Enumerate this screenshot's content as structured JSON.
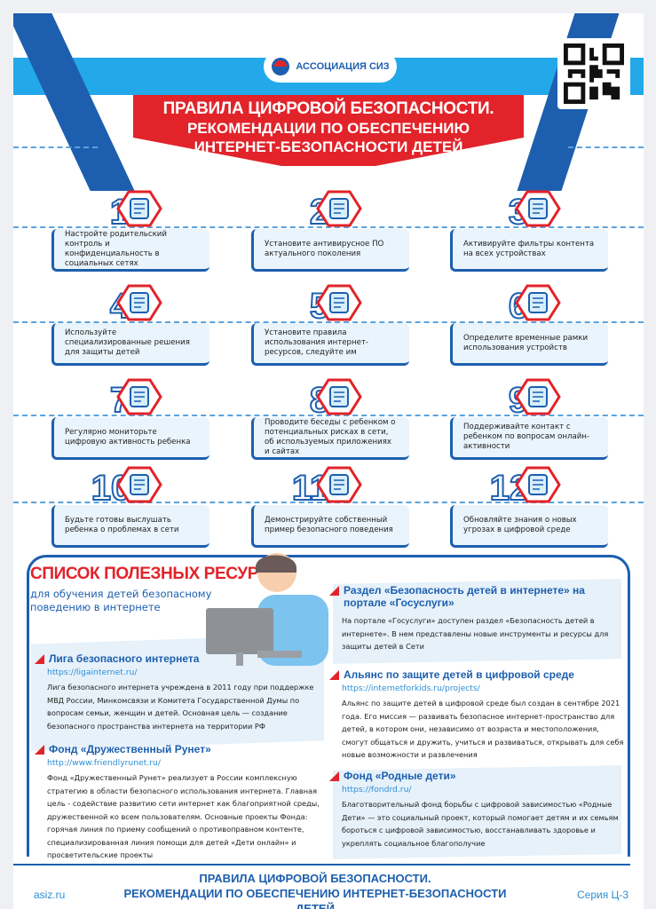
{
  "header": {
    "org": "АССОЦИАЦИЯ СИЗ",
    "title_line1": "ПРАВИЛА ЦИФРОВОЙ БЕЗОПАСНОСТИ.",
    "title_line2": "РЕКОМЕНДАЦИИ ПО ОБЕСПЕЧЕНИЮ",
    "title_line3": "ИНТЕРНЕТ-БЕЗОПАСНОСТИ ДЕТЕЙ"
  },
  "colors": {
    "blue": "#1d5fae",
    "light_blue": "#23a9ea",
    "red": "#e2232a"
  },
  "rules": [
    {
      "num": "1",
      "icon": "lock-gear-icon",
      "text": "Настройте родительский контроль и конфиденциальность в социальных сетях"
    },
    {
      "num": "2",
      "icon": "shield-icon",
      "text": "Установите антивирусное ПО актуального поколения"
    },
    {
      "num": "3",
      "icon": "filter-icon",
      "text": "Активируйте фильтры контента на всех устройствах"
    },
    {
      "num": "4",
      "icon": "umbrella-person-icon",
      "text": "Используйте специализированные решения для защиты детей"
    },
    {
      "num": "5",
      "icon": "checklist-icon",
      "text": "Установите правила использования интернет-ресурсов, следуйте им"
    },
    {
      "num": "6",
      "icon": "phone-clock-icon",
      "text": "Определите временные рамки использования устройств"
    },
    {
      "num": "7",
      "icon": "chart-magnifier-icon",
      "text": "Регулярно мониторьте цифровую активность ребенка"
    },
    {
      "num": "8",
      "icon": "chat-person-icon",
      "text": "Проводите беседы с ребенком о потенциальных рисках в сети, об используемых приложениях и сайтах"
    },
    {
      "num": "9",
      "icon": "phone-contact-icon",
      "text": "Поддерживайте контакт с ребенком по вопросам онлайн-активности"
    },
    {
      "num": "10",
      "icon": "ear-icon",
      "text": "Будьте готовы выслушать ребенка о проблемах в сети"
    },
    {
      "num": "11",
      "icon": "person-example-icon",
      "text": "Демонстрируйте собственный пример безопасного поведения"
    },
    {
      "num": "12",
      "icon": "book-alert-icon",
      "text": "Обновляйте знания о новых угрозах в цифровой среде"
    }
  ],
  "resources": {
    "title": "СПИСОК ПОЛЕЗНЫХ РЕСУРСОВ",
    "subtitle": "для обучения детей безопасному поведению в интернете",
    "items": [
      {
        "title": "Лига безопасного интернета",
        "url": "https://ligainternet.ru/",
        "text": "Лига безопасного интернета учреждена в 2011 году при поддержке МВД России, Минкомсвязи и Комитета Государственной Думы по вопросам семьи, женщин и детей. Основная цель — создание безопасного пространства интернета на территории РФ"
      },
      {
        "title": "Фонд «Дружественный Рунет»",
        "url": "http://www.friendlyrunet.ru/",
        "text": "Фонд «Дружественный Рунет» реализует в России комплексную стратегию в области безопасного использования интернета. Главная цель - содействие развитию сети интернет как благоприятной среды, дружественной ко всем пользователям. Основные проекты Фонда: горячая линия по приему сообщений о противоправном контенте, специализированная линия помощи для детей «Дети онлайн» и просветительские проекты"
      },
      {
        "title": "Раздел «Безопасность детей в интернете» на портале «Госуслуги»",
        "text": "На портале «Госуслуги» доступен раздел «Безопасность детей в интернете». В нем представлены новые инструменты и ресурсы для защиты детей в Сети"
      },
      {
        "title": "Альянс по защите детей в цифровой среде",
        "url": "https://internetforkids.ru/projects/",
        "text": "Альянс по защите детей в цифровой среде был создан в сентябре 2021 года. Его миссия — развивать безопасное интернет-пространство для детей, в котором они, независимо от возраста и местоположения, смогут общаться и дружить, учиться и развиваться, открывать для себя новые возможности и развлечения"
      },
      {
        "title": "Фонд «Родные дети»",
        "url": "https://fondrd.ru/",
        "text": "Благотворительный фонд борьбы с цифровой зависимостью «Родные Дети» — это социальный проект, который помогает детям и их семьям бороться с цифровой зависимостью, восстанавливать здоровье и укреплять социальное благополучие"
      }
    ]
  },
  "footer": {
    "site": "asiz.ru",
    "title_line1": "ПРАВИЛА ЦИФРОВОЙ БЕЗОПАСНОСТИ.",
    "title_line2": "РЕКОМЕНДАЦИИ ПО ОБЕСПЕЧЕНИЮ ИНТЕРНЕТ-БЕЗОПАСНОСТИ ДЕТЕЙ",
    "series": "Серия Ц-3"
  }
}
